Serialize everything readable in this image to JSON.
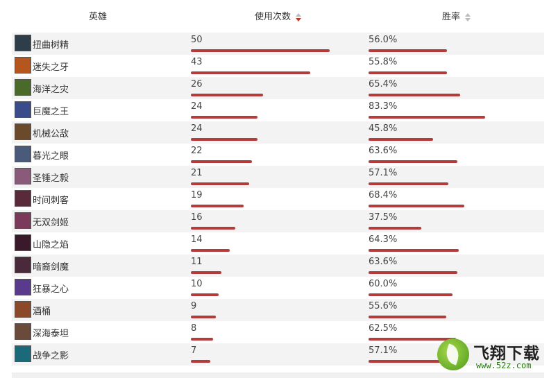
{
  "header": {
    "hero_label": "英雄",
    "usage_label": "使用次数",
    "winrate_label": "胜率"
  },
  "colors": {
    "bar": "#b23b3b",
    "sort_active": "#c0392b",
    "stripe": "#f3f3f3"
  },
  "rows": [
    {
      "name": "扭曲树精",
      "usage": "50",
      "winrate": "56.0%",
      "avatar": "#2e3d4a"
    },
    {
      "name": "迷失之牙",
      "usage": "43",
      "winrate": "55.8%",
      "avatar": "#b5561f"
    },
    {
      "name": "海洋之灾",
      "usage": "26",
      "winrate": "65.4%",
      "avatar": "#4a6a2a"
    },
    {
      "name": "巨魔之王",
      "usage": "24",
      "winrate": "83.3%",
      "avatar": "#3a4c8a"
    },
    {
      "name": "机械公敌",
      "usage": "24",
      "winrate": "45.8%",
      "avatar": "#6a4a2a"
    },
    {
      "name": "暮光之眼",
      "usage": "22",
      "winrate": "63.6%",
      "avatar": "#4a5a7a"
    },
    {
      "name": "圣锤之毅",
      "usage": "21",
      "winrate": "57.1%",
      "avatar": "#8a5a7a"
    },
    {
      "name": "时间刺客",
      "usage": "19",
      "winrate": "68.4%",
      "avatar": "#5a2a3a"
    },
    {
      "name": "无双剑姬",
      "usage": "16",
      "winrate": "37.5%",
      "avatar": "#7a3a5a"
    },
    {
      "name": "山隐之焰",
      "usage": "14",
      "winrate": "64.3%",
      "avatar": "#3a1a2a"
    },
    {
      "name": "暗裔剑魔",
      "usage": "11",
      "winrate": "63.6%",
      "avatar": "#4a2a3a"
    },
    {
      "name": "狂暴之心",
      "usage": "10",
      "winrate": "60.0%",
      "avatar": "#5a3a8a"
    },
    {
      "name": "酒桶",
      "usage": "9",
      "winrate": "55.6%",
      "avatar": "#8a4a2a"
    },
    {
      "name": "深海泰坦",
      "usage": "8",
      "winrate": "62.5%",
      "avatar": "#6a4a3a"
    },
    {
      "name": "战争之影",
      "usage": "7",
      "winrate": "57.1%",
      "avatar": "#1a6a7a"
    }
  ],
  "watermark": {
    "brand": "飞翔下载",
    "url": "www.52z.com"
  }
}
